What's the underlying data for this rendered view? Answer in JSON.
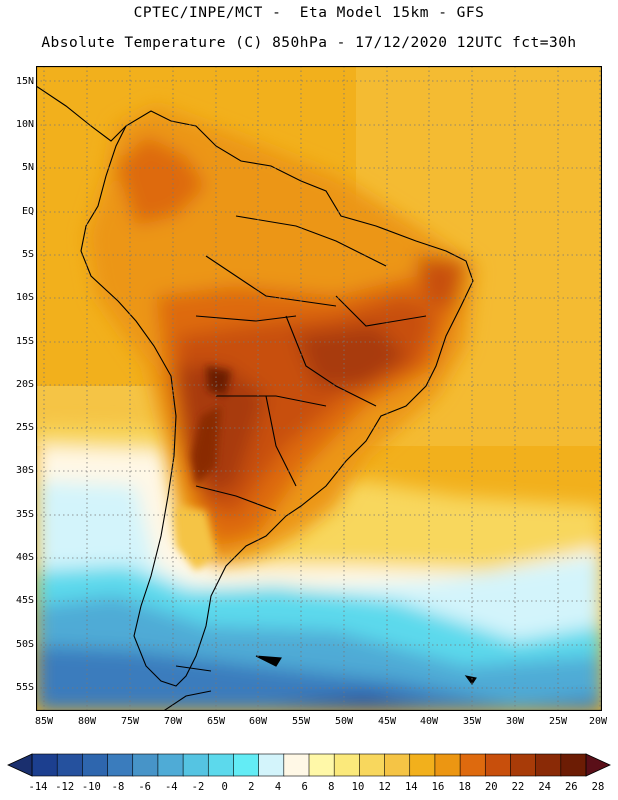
{
  "header": {
    "line1": "CPTEC/INPE/MCT -  Eta Model 15km - GFS",
    "line2": "Absolute Temperature (C) 850hPa - 17/12/2020 12UTC fct=30h"
  },
  "latitude_labels": [
    "15N",
    "10N",
    "5N",
    "EQ",
    "5S",
    "10S",
    "15S",
    "20S",
    "25S",
    "30S",
    "35S",
    "40S",
    "45S",
    "50S",
    "55S"
  ],
  "longitude_labels": [
    "85W",
    "80W",
    "75W",
    "70W",
    "65W",
    "60W",
    "55W",
    "50W",
    "45W",
    "40W",
    "35W",
    "30W",
    "25W",
    "20W"
  ],
  "colorbar": {
    "labels": [
      "-14",
      "-12",
      "-10",
      "-8",
      "-6",
      "-4",
      "-2",
      "0",
      "2",
      "4",
      "6",
      "8",
      "10",
      "12",
      "14",
      "16",
      "18",
      "20",
      "22",
      "24",
      "26",
      "28"
    ],
    "colors": [
      "#1c3f8f",
      "#25519e",
      "#2e66ae",
      "#3a7cbd",
      "#4794c8",
      "#4fabd6",
      "#55c4e2",
      "#5cd9ec",
      "#63ecf5",
      "#d3f4fb",
      "#fff8e6",
      "#fff8a8",
      "#fbe97b",
      "#f8d75d",
      "#f5c445",
      "#f2b01c",
      "#ec9612",
      "#de6a0e",
      "#c84f0c",
      "#a83b08",
      "#8a2a06",
      "#6c1c04"
    ],
    "underflow_color": "#1a2f6e",
    "overflow_color": "#5a0f18"
  },
  "map": {
    "description_ocean_north": "warm",
    "land_outline_color": "#000000",
    "grid_color": "#777777"
  }
}
